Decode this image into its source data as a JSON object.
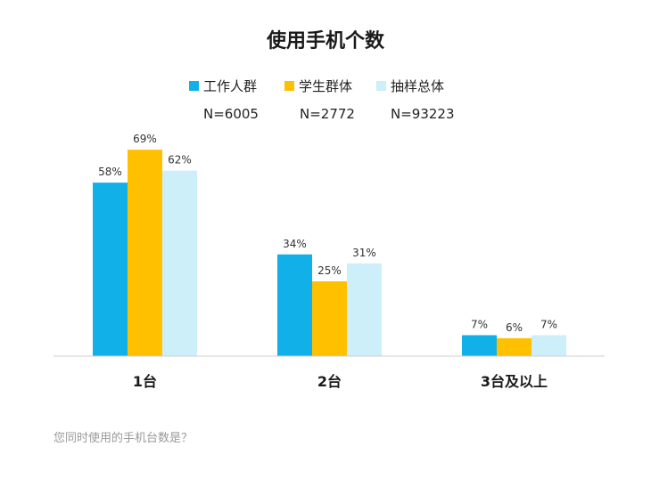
{
  "chart_data": {
    "type": "bar",
    "title": "使用手机个数",
    "categories": [
      "1台",
      "2台",
      "3台及以上"
    ],
    "series": [
      {
        "name": "工作人群",
        "n_label": "N=6005",
        "values": [
          58,
          34,
          7
        ],
        "labels": [
          "58%",
          "34%",
          "7%"
        ],
        "color": "#12b0e8"
      },
      {
        "name": "学生群体",
        "n_label": "N=2772",
        "values": [
          69,
          25,
          6
        ],
        "labels": [
          "69%",
          "25%",
          "6%"
        ],
        "color": "#ffc000"
      },
      {
        "name": "抽样总体",
        "n_label": "N=93223",
        "values": [
          62,
          31,
          7
        ],
        "labels": [
          "62%",
          "31%",
          "7%"
        ],
        "color": "#cdeffa"
      }
    ],
    "ylim": [
      0,
      100
    ],
    "grid": false,
    "legend_position": "top"
  },
  "footnote": "您同时使用的手机台数是？"
}
